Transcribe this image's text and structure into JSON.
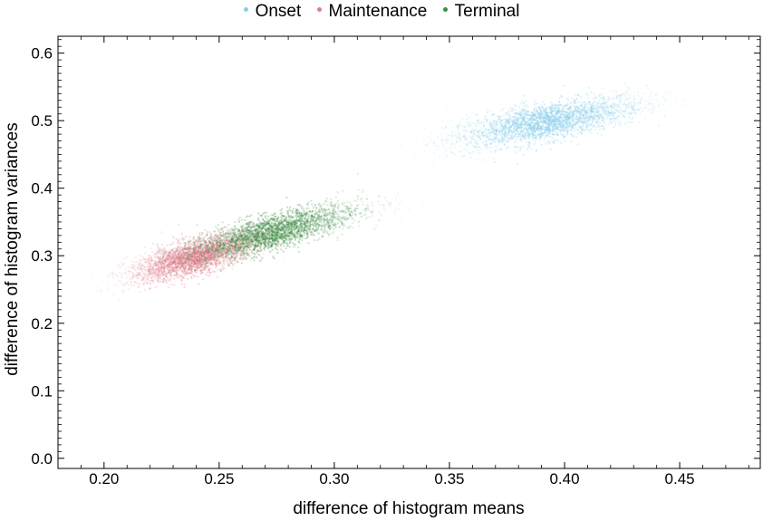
{
  "chart_data": {
    "type": "scatter",
    "xlabel": "difference of histogram means",
    "ylabel": "difference of histogram variances",
    "xlim": [
      0.18,
      0.485
    ],
    "ylim": [
      -0.015,
      0.625
    ],
    "xticks": [
      "0.20",
      "0.25",
      "0.30",
      "0.35",
      "0.40",
      "0.45"
    ],
    "yticks": [
      "0.0",
      "0.1",
      "0.2",
      "0.3",
      "0.4",
      "0.5",
      "0.6"
    ],
    "legend_position": "top-center",
    "grid": false,
    "series": [
      {
        "name": "Onset",
        "color": "#87CEEB",
        "clusters": [
          {
            "x_range": [
              0.33,
              0.46
            ],
            "y_range": [
              0.4,
              0.59
            ],
            "center": [
              0.392,
              0.498
            ],
            "slope": 0.6,
            "density": "high"
          }
        ]
      },
      {
        "name": "Maintenance",
        "color": "#E57A8C",
        "clusters": [
          {
            "x_range": [
              0.19,
              0.28
            ],
            "y_range": [
              0.2,
              0.37
            ],
            "center": [
              0.24,
              0.298
            ],
            "slope": 0.9,
            "density": "high"
          }
        ]
      },
      {
        "name": "Terminal",
        "color": "#3A8C40",
        "clusters": [
          {
            "x_range": [
              0.22,
              0.34
            ],
            "y_range": [
              0.24,
              0.42
            ],
            "center": [
              0.272,
              0.334
            ],
            "slope": 0.85,
            "density": "high"
          }
        ]
      }
    ]
  }
}
